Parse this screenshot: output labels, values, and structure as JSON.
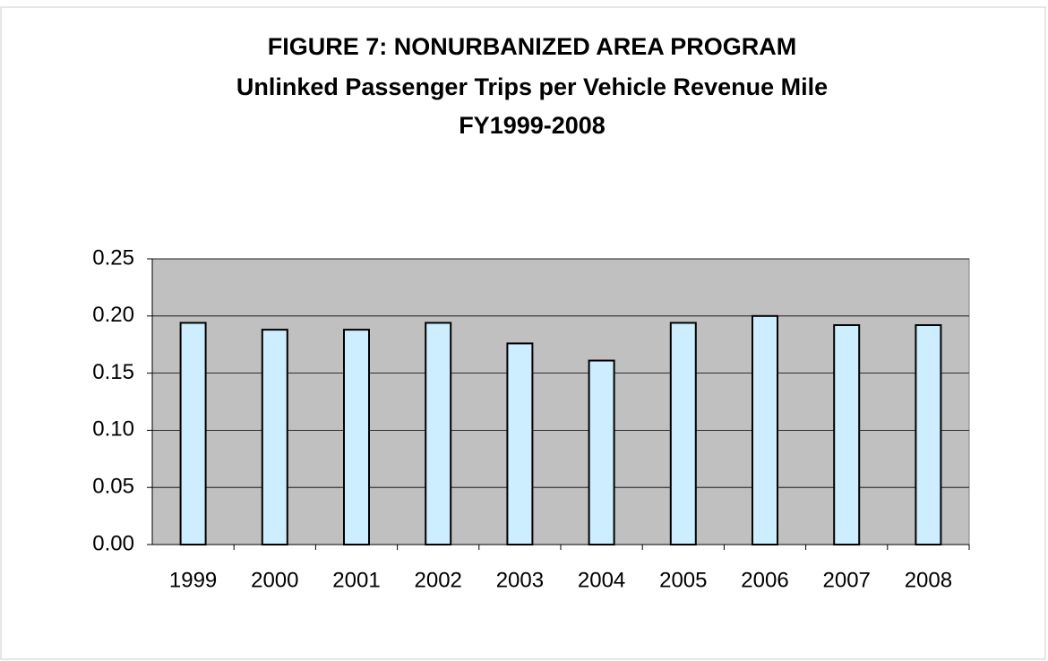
{
  "chart_data": {
    "type": "bar",
    "title": "FIGURE  7: NONURBANIZED AREA PROGRAM",
    "subtitle": [
      "Unlinked Passenger Trips per Vehicle Revenue Mile",
      "FY1999-2008"
    ],
    "categories": [
      "1999",
      "2000",
      "2001",
      "2002",
      "2003",
      "2004",
      "2005",
      "2006",
      "2007",
      "2008"
    ],
    "values": [
      0.194,
      0.188,
      0.188,
      0.194,
      0.176,
      0.161,
      0.194,
      0.2,
      0.192,
      0.192
    ],
    "color": "#cceeff",
    "ylim": [
      0,
      0.25
    ],
    "yticks": [
      {
        "value": 0,
        "label": "0.00"
      },
      0.05,
      {
        "value": 0.1,
        "label": "0.10"
      },
      0.15,
      {
        "value": 0.2,
        "label": "0.20"
      },
      0.25
    ],
    "grid": true
  }
}
